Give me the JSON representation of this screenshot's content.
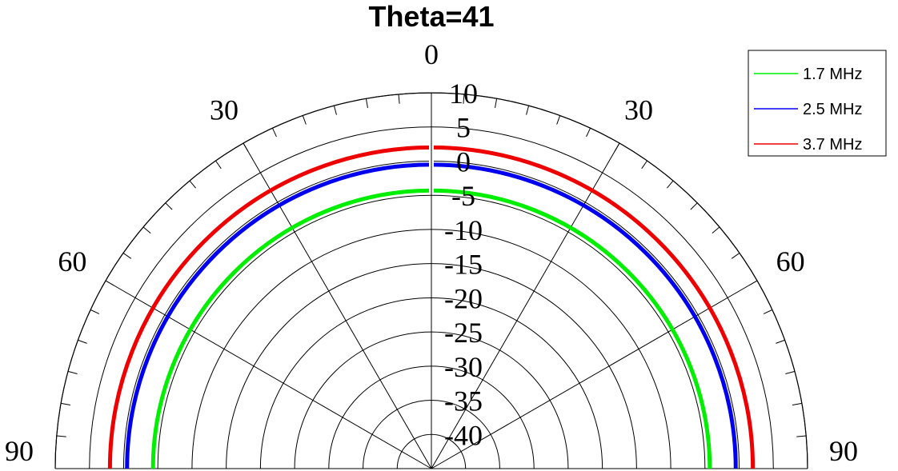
{
  "chart_data": {
    "type": "polar-line",
    "title": "Theta=41",
    "theta_ticks": [
      {
        "angle": 0,
        "label": "0"
      },
      {
        "angle": -30,
        "label": "30"
      },
      {
        "angle": 30,
        "label": "30"
      },
      {
        "angle": -60,
        "label": "60"
      },
      {
        "angle": 60,
        "label": "60"
      },
      {
        "angle": -90,
        "label": "90"
      },
      {
        "angle": 90,
        "label": "90"
      }
    ],
    "theta_range": [
      -90,
      90
    ],
    "r_range": [
      -45,
      10
    ],
    "r_ticks": [
      {
        "value": 10,
        "label": "10"
      },
      {
        "value": 5,
        "label": "5"
      },
      {
        "value": 0,
        "label": "0"
      },
      {
        "value": -5,
        "label": "-5"
      },
      {
        "value": -10,
        "label": "-10"
      },
      {
        "value": -15,
        "label": "-15"
      },
      {
        "value": -20,
        "label": "-20"
      },
      {
        "value": -25,
        "label": "-25"
      },
      {
        "value": -30,
        "label": "-30"
      },
      {
        "value": -35,
        "label": "-35"
      },
      {
        "value": -40,
        "label": "-40"
      }
    ],
    "grid": true,
    "legend_position": "top-right",
    "series": [
      {
        "name": "1.7 MHz",
        "color": "#00ee00",
        "r": -4.3,
        "theta": [
          -90,
          -60,
          -30,
          0,
          30,
          60,
          90
        ]
      },
      {
        "name": "2.5 MHz",
        "color": "#0000ee",
        "r": -0.5,
        "theta": [
          -90,
          -60,
          -30,
          0,
          30,
          60,
          90
        ]
      },
      {
        "name": "3.7 MHz",
        "color": "#ee0000",
        "r": 2.0,
        "theta": [
          -90,
          -60,
          -30,
          0,
          30,
          60,
          90
        ]
      }
    ]
  }
}
